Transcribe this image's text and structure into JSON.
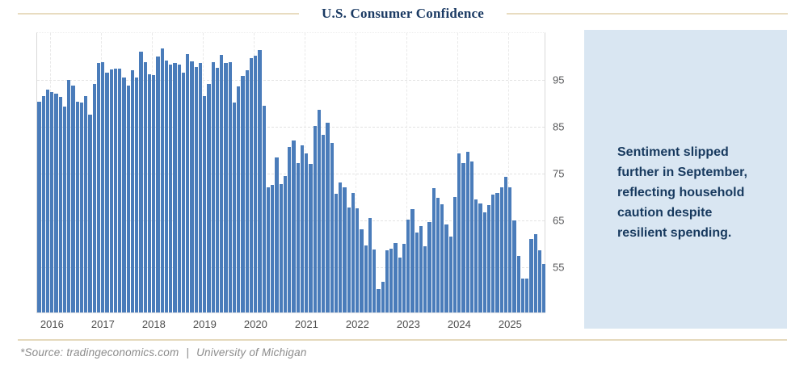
{
  "header": {
    "title": "U.S. Consumer Confidence"
  },
  "chart_data": {
    "type": "bar",
    "title": "U.S. Consumer Confidence",
    "xlabel": "",
    "ylabel": "",
    "x_start": "2015-10",
    "x_end": "2025-09",
    "frequency": "monthly",
    "ylim": [
      45,
      105
    ],
    "y_ticks": [
      55,
      65,
      75,
      85,
      95
    ],
    "y_axis_side": "right",
    "grid": true,
    "bar_color": "#4a7cba",
    "x_ticks": [
      {
        "label": "2016",
        "month_index": 3
      },
      {
        "label": "2017",
        "month_index": 15
      },
      {
        "label": "2018",
        "month_index": 27
      },
      {
        "label": "2019",
        "month_index": 39
      },
      {
        "label": "2020",
        "month_index": 51
      },
      {
        "label": "2021",
        "month_index": 63
      },
      {
        "label": "2022",
        "month_index": 75
      },
      {
        "label": "2023",
        "month_index": 87
      },
      {
        "label": "2024",
        "month_index": 99
      },
      {
        "label": "2025",
        "month_index": 111
      }
    ],
    "values": [
      90.0,
      91.3,
      92.6,
      92.0,
      91.7,
      91.0,
      89.0,
      94.7,
      93.5,
      90.0,
      89.8,
      91.2,
      87.2,
      93.8,
      98.2,
      98.5,
      96.3,
      96.9,
      97.0,
      97.1,
      95.1,
      93.4,
      96.8,
      95.1,
      100.7,
      98.5,
      95.9,
      95.7,
      99.7,
      101.4,
      98.8,
      98.0,
      98.2,
      97.9,
      96.2,
      100.1,
      98.6,
      97.5,
      98.3,
      91.2,
      93.8,
      98.4,
      97.2,
      100.0,
      98.2,
      98.4,
      89.8,
      93.2,
      95.5,
      96.8,
      99.3,
      99.8,
      101.0,
      89.1,
      71.8,
      72.3,
      78.1,
      72.5,
      74.1,
      80.4,
      81.8,
      76.9,
      80.7,
      79.0,
      76.8,
      84.9,
      88.3,
      82.9,
      85.5,
      81.2,
      70.3,
      72.8,
      71.7,
      67.4,
      70.6,
      67.2,
      62.8,
      59.4,
      65.2,
      58.4,
      50.0,
      51.5,
      58.2,
      58.6,
      59.9,
      56.8,
      59.7,
      64.9,
      67.0,
      62.0,
      63.5,
      59.2,
      64.4,
      71.6,
      69.5,
      68.1,
      63.8,
      61.3,
      69.7,
      79.0,
      76.9,
      79.4,
      77.2,
      69.1,
      68.2,
      66.4,
      67.9,
      70.1,
      70.5,
      71.8,
      74.0,
      71.7,
      64.7,
      57.0,
      52.2,
      52.2,
      60.7,
      61.7,
      58.2,
      55.4
    ]
  },
  "callout": {
    "background": "#d9e6f2",
    "text_color": "#17395e",
    "text": "Sentiment slipped further in September, reflecting household caution despite resilient spending.",
    "lines": [
      "Sentiment slipped",
      "further in September,",
      "reflecting household",
      "caution despite",
      "resilient spending."
    ]
  },
  "footer": {
    "source_prefix": "*Source: tradingeconomics.com",
    "separator": "|",
    "source_name": "University of Michigan"
  },
  "colors": {
    "accent_rule": "#e8dcc0",
    "title": "#1b3a63",
    "bar": "#4a7cba"
  }
}
